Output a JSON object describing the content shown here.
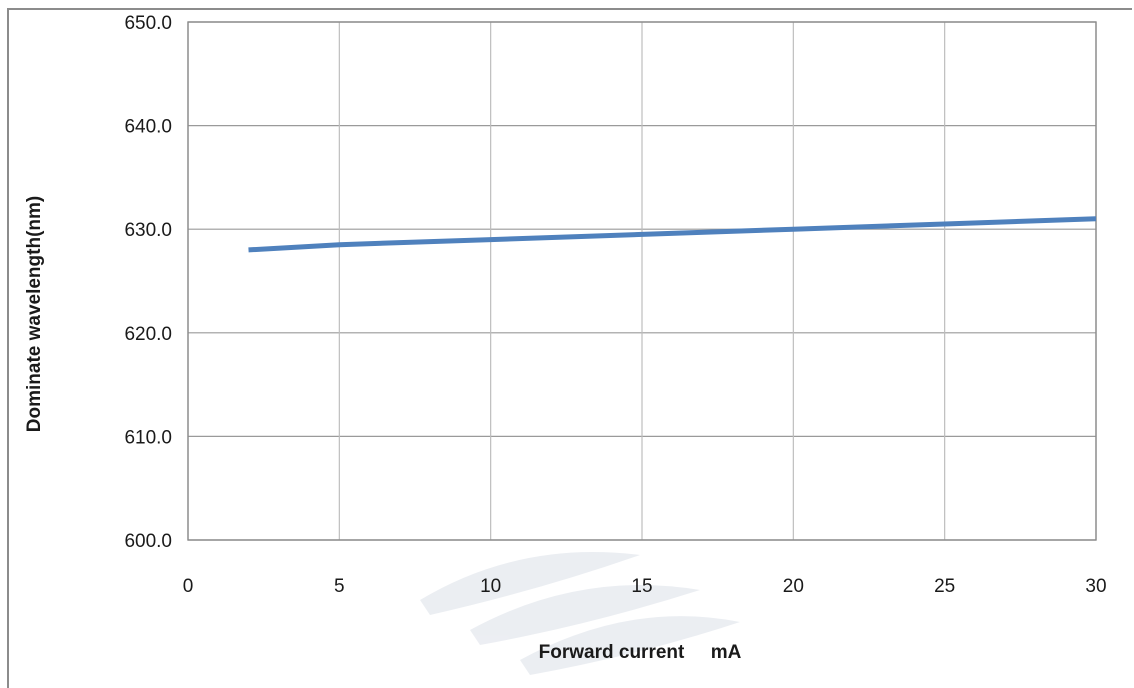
{
  "chart_data": {
    "type": "line",
    "title": "",
    "xlabel": "Forward current     mA",
    "ylabel": "Dominate wavelength(nm)",
    "xlim": [
      0,
      30
    ],
    "ylim": [
      600,
      650
    ],
    "x_ticks": [
      "0",
      "5",
      "10",
      "15",
      "20",
      "25",
      "30"
    ],
    "y_ticks": [
      "600.0",
      "610.0",
      "620.0",
      "630.0",
      "640.0",
      "650.0"
    ],
    "grid": true,
    "legend": "none",
    "series": [
      {
        "color": "#4f81bd",
        "x": [
          2,
          5,
          10,
          15,
          20,
          25,
          30
        ],
        "y": [
          628.0,
          628.5,
          629.0,
          629.5,
          630.0,
          630.5,
          631.0
        ]
      }
    ]
  }
}
